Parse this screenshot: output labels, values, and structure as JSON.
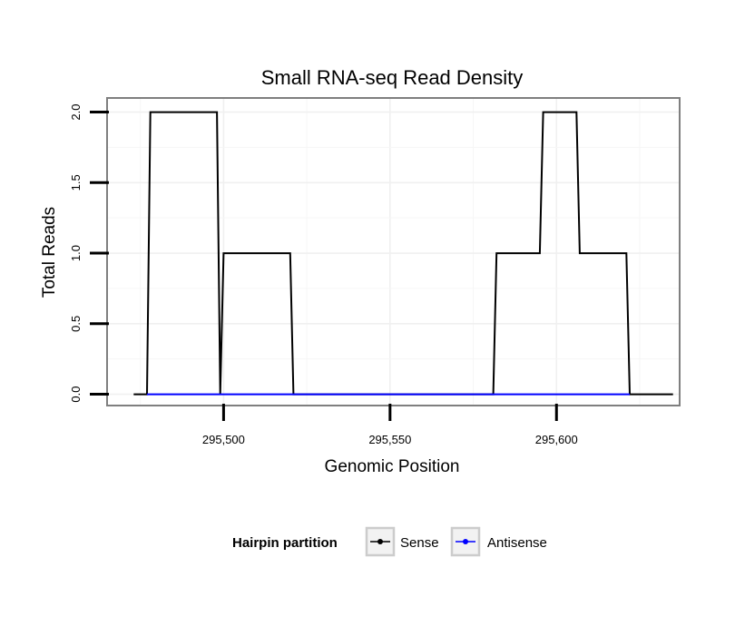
{
  "chart_data": {
    "type": "line",
    "title": "Small RNA-seq Read Density",
    "xlabel": "Genomic Position",
    "ylabel": "Total Reads",
    "xlim": [
      295465,
      295637
    ],
    "ylim": [
      -0.08,
      2.1
    ],
    "x_ticks": [
      {
        "value": 295500,
        "label": "295,500"
      },
      {
        "value": 295550,
        "label": "295,550"
      },
      {
        "value": 295600,
        "label": "295,600"
      }
    ],
    "y_ticks": [
      {
        "value": 0.0,
        "label": "0.0"
      },
      {
        "value": 0.5,
        "label": "0.5"
      },
      {
        "value": 1.0,
        "label": "1.0"
      },
      {
        "value": 1.5,
        "label": "1.5"
      },
      {
        "value": 2.0,
        "label": "2.0"
      }
    ],
    "grid": true,
    "legend": {
      "title": "Hairpin partition",
      "position": "bottom"
    },
    "series": [
      {
        "name": "Sense",
        "color": "#000000",
        "x": [
          295473,
          295477,
          295478,
          295498,
          295499,
          295500,
          295520,
          295521,
          295581,
          295582,
          295595,
          295596,
          295606,
          295607,
          295621,
          295622,
          295635
        ],
        "y": [
          0,
          0,
          2,
          2,
          0,
          1,
          1,
          0,
          0,
          1,
          1,
          2,
          2,
          1,
          1,
          0,
          0
        ]
      },
      {
        "name": "Antisense",
        "color": "#0000ff",
        "x": [
          295477,
          295622
        ],
        "y": [
          0,
          0
        ]
      }
    ]
  }
}
